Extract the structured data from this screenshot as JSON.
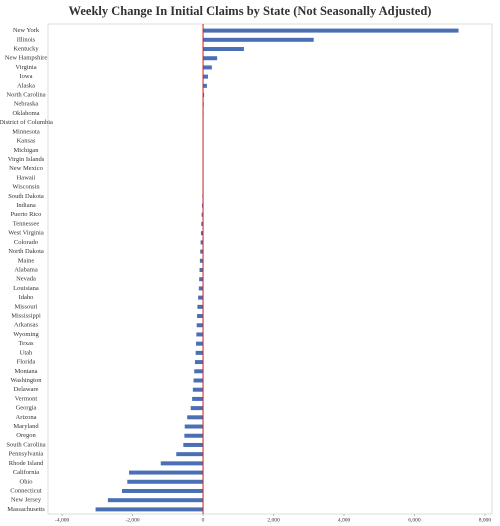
{
  "chart_data": {
    "type": "hbar",
    "title": "Weekly Change In Initial Claims by State (Not Seasonally Adjusted)",
    "categories": [
      "New York",
      "Illinois",
      "Kentucky",
      "New Hampshire",
      "Virginia",
      "Iowa",
      "Alaska",
      "North Carolina",
      "Nebraska",
      "Oklahoma",
      "District of Columbia",
      "Minnesota",
      "Kansas",
      "Michigan",
      "Virgin Islands",
      "New Mexico",
      "Hawaii",
      "Wisconsin",
      "South Dakota",
      "Indiana",
      "Puerto Rico",
      "Tennessee",
      "West Virginia",
      "Colorado",
      "North Dakota",
      "Maine",
      "Alabama",
      "Nevada",
      "Louisiana",
      "Idaho",
      "Missouri",
      "Mississippi",
      "Arkansas",
      "Wyoming",
      "Texas",
      "Utah",
      "Florida",
      "Montana",
      "Washington",
      "Delaware",
      "Vermont",
      "Georgia",
      "Arizona",
      "Maryland",
      "Oregon",
      "South Carolina",
      "Pennsylvania",
      "Rhode Island",
      "California",
      "Ohio",
      "Connecticut",
      "New Jersey",
      "Massachusetts"
    ],
    "values": [
      7250,
      3140,
      1160,
      400,
      250,
      140,
      110,
      30,
      20,
      15,
      5,
      3,
      2,
      1,
      0,
      -2,
      -5,
      -10,
      -20,
      -30,
      -40,
      -50,
      -60,
      -70,
      -80,
      -90,
      -100,
      -110,
      -120,
      -140,
      -160,
      -170,
      -180,
      -190,
      -200,
      -210,
      -230,
      -250,
      -270,
      -290,
      -310,
      -350,
      -450,
      -520,
      -530,
      -560,
      -760,
      -1200,
      -2100,
      -2150,
      -2300,
      -2700,
      -3050
    ],
    "color": "#4a6fb5",
    "zero_line_color": "#cc2222",
    "xlim": [
      -4400,
      8200
    ],
    "xticks": [
      {
        "value": -4000,
        "label": "-4,000"
      },
      {
        "value": -2000,
        "label": "-2,000"
      },
      0,
      {
        "value": 2000,
        "label": "2,000"
      },
      {
        "value": 4000,
        "label": "4,000"
      },
      {
        "value": 6000,
        "label": "6,000"
      },
      {
        "value": 8000,
        "label": "8,000"
      }
    ]
  }
}
